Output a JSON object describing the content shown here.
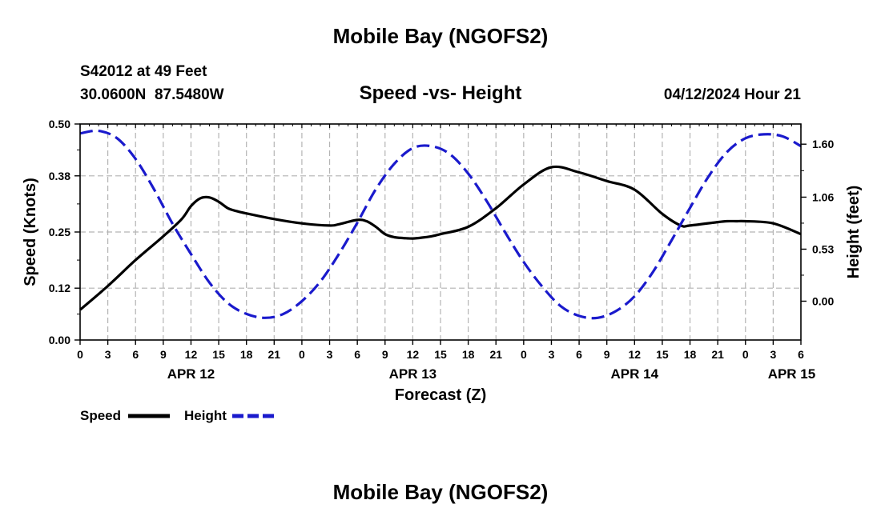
{
  "page": {
    "top_title": "Mobile Bay (NGOFS2)",
    "bottom_title": "Mobile Bay (NGOFS2)",
    "station_label": "S42012 at 49 Feet",
    "coordinates": "30.0600N  87.5480W",
    "forecast_time": "04/12/2024 Hour 21"
  },
  "colors": {
    "speed": "#000000",
    "height": "#1a1acc",
    "grid": "#b4b4b4"
  },
  "chart_data": {
    "type": "line",
    "title": "Speed -vs- Height",
    "xlabel": "Forecast (Z)",
    "ylabel": "Speed (Knots)",
    "y2label": "Height (feet)",
    "x_unit": "hours since 04/12 00Z",
    "xlim": [
      0,
      78
    ],
    "ylim": [
      0,
      0.5
    ],
    "y2lim": [
      -0.3955,
      1.8054
    ],
    "x_ticks": [
      0,
      3,
      6,
      9,
      12,
      15,
      18,
      21,
      24,
      27,
      30,
      33,
      36,
      39,
      42,
      45,
      48,
      51,
      54,
      57,
      60,
      63,
      66,
      69,
      72,
      75,
      78
    ],
    "x_tick_labels": [
      "0",
      "3",
      "6",
      "9",
      "12",
      "15",
      "18",
      "21",
      "0",
      "3",
      "6",
      "9",
      "12",
      "15",
      "18",
      "21",
      "0",
      "3",
      "6",
      "9",
      "12",
      "15",
      "18",
      "21",
      "0",
      "3",
      "6"
    ],
    "day_labels": [
      {
        "x": 12,
        "label": "APR 12"
      },
      {
        "x": 36,
        "label": "APR 13"
      },
      {
        "x": 60,
        "label": "APR 14"
      },
      {
        "x": 77,
        "label": "APR 15"
      }
    ],
    "y_ticks": [
      0.0,
      0.12,
      0.25,
      0.38,
      0.5
    ],
    "y_tick_labels": [
      "0.00",
      "0.12",
      "0.25",
      "0.38",
      "0.50"
    ],
    "y2_ticks": [
      0.0,
      0.53,
      1.06,
      1.6
    ],
    "y2_tick_labels": [
      "0.00",
      "0.53",
      "1.06",
      "1.60"
    ],
    "grid": true,
    "legend": {
      "position": "bottom-left",
      "entries": [
        "Speed",
        "Height"
      ]
    },
    "series": [
      {
        "name": "Speed",
        "axis": "left",
        "style": "solid",
        "x": [
          0,
          3,
          6,
          9,
          11,
          12,
          13,
          14,
          15,
          16,
          17,
          18,
          21,
          24,
          27,
          28,
          30,
          31,
          32,
          33,
          34,
          35,
          36,
          37,
          38,
          39,
          42,
          45,
          48,
          51,
          54,
          57,
          60,
          63,
          65,
          66,
          69,
          70,
          71,
          72,
          75,
          78
        ],
        "values": [
          0.07,
          0.125,
          0.185,
          0.24,
          0.28,
          0.31,
          0.328,
          0.33,
          0.32,
          0.305,
          0.298,
          0.293,
          0.28,
          0.27,
          0.265,
          0.268,
          0.278,
          0.275,
          0.262,
          0.245,
          0.238,
          0.236,
          0.235,
          0.237,
          0.24,
          0.245,
          0.262,
          0.305,
          0.36,
          0.4,
          0.388,
          0.368,
          0.348,
          0.292,
          0.265,
          0.265,
          0.273,
          0.275,
          0.275,
          0.275,
          0.27,
          0.245
        ]
      },
      {
        "name": "Height",
        "axis": "right",
        "style": "dashed",
        "x": [
          0,
          2,
          4,
          6,
          8,
          10,
          12,
          14,
          16,
          18,
          20,
          22,
          24,
          26,
          28,
          30,
          32,
          34,
          36,
          38,
          40,
          42,
          44,
          46,
          48,
          50,
          52,
          54,
          56,
          58,
          60,
          62,
          64,
          66,
          68,
          70,
          72,
          74,
          76,
          78
        ],
        "values": [
          1.71,
          1.735,
          1.66,
          1.45,
          1.14,
          0.79,
          0.48,
          0.19,
          -0.02,
          -0.13,
          -0.17,
          -0.13,
          0.0,
          0.2,
          0.48,
          0.8,
          1.14,
          1.4,
          1.56,
          1.58,
          1.5,
          1.3,
          1.02,
          0.7,
          0.4,
          0.15,
          -0.05,
          -0.15,
          -0.17,
          -0.1,
          0.05,
          0.3,
          0.62,
          0.95,
          1.27,
          1.52,
          1.66,
          1.7,
          1.68,
          1.58
        ]
      }
    ]
  }
}
